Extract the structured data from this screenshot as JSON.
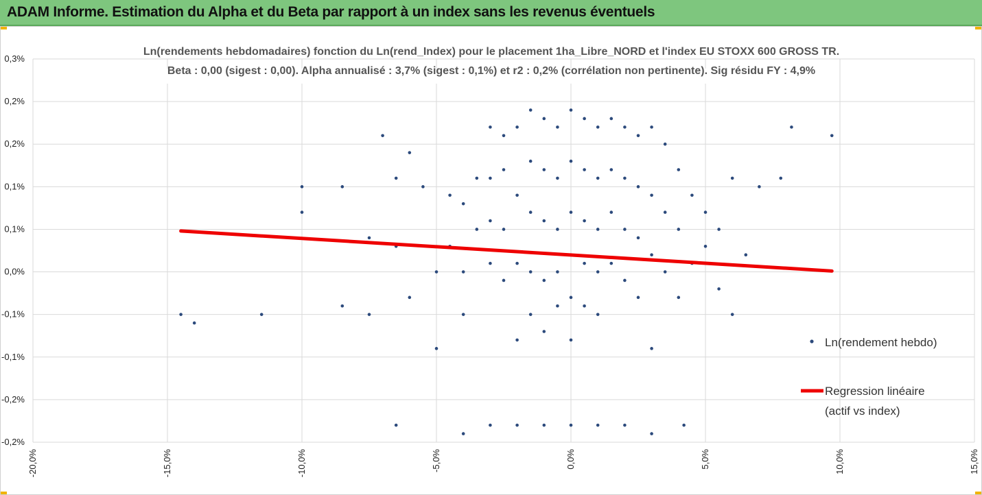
{
  "header": {
    "title": "ADAM Informe. Estimation du Alpha et du Beta par rapport à un index sans les revenus éventuels"
  },
  "chart_data": {
    "type": "scatter",
    "title_line1": "Ln(rendements hebdomadaires) fonction du Ln(rend_Index) pour le placement 1ha_Libre_NORD et l'index EU STOXX 600 GROSS TR.",
    "title_line2": "Beta : 0,00 (sigest : 0,00). Alpha annualisé : 3,7% (sigest : 0,1%) et r2 : 0,2% (corrélation non pertinente). Sig résidu FY : 4,9%",
    "xlim": [
      -0.2,
      0.15
    ],
    "ylim": [
      -0.0015,
      0.003
    ],
    "x_ticks": [
      "-20,0%",
      "-15,0%",
      "-10,0%",
      "-5,0%",
      "0,0%",
      "5,0%",
      "10,0%",
      "15,0%"
    ],
    "y_ticks": [
      "0,3%",
      "0,2%",
      "0,2%",
      "0,1%",
      "0,1%",
      "0,0%",
      "-0,1%",
      "-0,1%",
      "-0,2%",
      "-0,2%"
    ],
    "grid": true,
    "legend_position": "right",
    "series": [
      {
        "name": "Ln(rendement hebdo)",
        "kind": "scatter",
        "color": "#2c4a7c",
        "points": [
          [
            -0.145,
            0.0
          ],
          [
            -0.14,
            -0.0001
          ],
          [
            -0.115,
            0.0
          ],
          [
            -0.1,
            0.0015
          ],
          [
            -0.1,
            0.0012
          ],
          [
            -0.085,
            0.0015
          ],
          [
            -0.085,
            0.0001
          ],
          [
            -0.075,
            0.0009
          ],
          [
            -0.075,
            0.0
          ],
          [
            -0.07,
            0.0021
          ],
          [
            -0.065,
            0.0016
          ],
          [
            -0.065,
            0.0008
          ],
          [
            -0.06,
            0.0002
          ],
          [
            -0.06,
            0.0019
          ],
          [
            -0.055,
            0.0015
          ],
          [
            -0.05,
            0.0005
          ],
          [
            -0.05,
            -0.0004
          ],
          [
            -0.045,
            0.0008
          ],
          [
            -0.045,
            0.0014
          ],
          [
            -0.04,
            0.0013
          ],
          [
            -0.04,
            0.0
          ],
          [
            -0.04,
            0.0005
          ],
          [
            -0.035,
            0.0016
          ],
          [
            -0.035,
            0.001
          ],
          [
            -0.03,
            0.0022
          ],
          [
            -0.03,
            0.0016
          ],
          [
            -0.03,
            0.0011
          ],
          [
            -0.03,
            0.0006
          ],
          [
            -0.025,
            0.0021
          ],
          [
            -0.025,
            0.0017
          ],
          [
            -0.025,
            0.001
          ],
          [
            -0.025,
            0.0004
          ],
          [
            -0.02,
            0.0022
          ],
          [
            -0.02,
            0.0014
          ],
          [
            -0.02,
            0.0006
          ],
          [
            -0.02,
            -0.0003
          ],
          [
            -0.015,
            0.0024
          ],
          [
            -0.015,
            0.0018
          ],
          [
            -0.015,
            0.0012
          ],
          [
            -0.015,
            0.0005
          ],
          [
            -0.015,
            0.0
          ],
          [
            -0.01,
            0.0023
          ],
          [
            -0.01,
            0.0017
          ],
          [
            -0.01,
            0.0011
          ],
          [
            -0.01,
            0.0004
          ],
          [
            -0.01,
            -0.0002
          ],
          [
            -0.005,
            0.0022
          ],
          [
            -0.005,
            0.0016
          ],
          [
            -0.005,
            0.001
          ],
          [
            -0.005,
            0.0005
          ],
          [
            -0.005,
            0.0001
          ],
          [
            0.0,
            0.0024
          ],
          [
            0.0,
            0.0018
          ],
          [
            0.0,
            0.0012
          ],
          [
            0.0,
            0.0007
          ],
          [
            0.0,
            0.0002
          ],
          [
            0.0,
            -0.0003
          ],
          [
            0.005,
            0.0023
          ],
          [
            0.005,
            0.0017
          ],
          [
            0.005,
            0.0011
          ],
          [
            0.005,
            0.0006
          ],
          [
            0.005,
            0.0001
          ],
          [
            0.01,
            0.0022
          ],
          [
            0.01,
            0.0016
          ],
          [
            0.01,
            0.001
          ],
          [
            0.01,
            0.0005
          ],
          [
            0.01,
            0.0
          ],
          [
            0.015,
            0.0023
          ],
          [
            0.015,
            0.0017
          ],
          [
            0.015,
            0.0012
          ],
          [
            0.015,
            0.0006
          ],
          [
            0.02,
            0.0022
          ],
          [
            0.02,
            0.0016
          ],
          [
            0.02,
            0.001
          ],
          [
            0.02,
            0.0004
          ],
          [
            0.025,
            0.0021
          ],
          [
            0.025,
            0.0015
          ],
          [
            0.025,
            0.0009
          ],
          [
            0.025,
            0.0002
          ],
          [
            0.03,
            0.0022
          ],
          [
            0.03,
            0.0014
          ],
          [
            0.03,
            0.0007
          ],
          [
            0.03,
            -0.0004
          ],
          [
            0.035,
            0.002
          ],
          [
            0.035,
            0.0012
          ],
          [
            0.035,
            0.0005
          ],
          [
            0.04,
            0.0017
          ],
          [
            0.04,
            0.001
          ],
          [
            0.04,
            0.0002
          ],
          [
            0.045,
            0.0014
          ],
          [
            0.045,
            0.0006
          ],
          [
            0.05,
            0.0012
          ],
          [
            0.05,
            0.0008
          ],
          [
            0.055,
            0.001
          ],
          [
            0.055,
            0.0003
          ],
          [
            0.06,
            0.0016
          ],
          [
            0.06,
            0.0
          ],
          [
            0.065,
            0.0007
          ],
          [
            0.07,
            0.0015
          ],
          [
            0.078,
            0.0016
          ],
          [
            0.082,
            0.0022
          ],
          [
            0.097,
            0.0021
          ],
          [
            -0.065,
            -0.0013
          ],
          [
            -0.04,
            -0.0014
          ],
          [
            -0.03,
            -0.0013
          ],
          [
            -0.02,
            -0.0013
          ],
          [
            -0.01,
            -0.0013
          ],
          [
            0.0,
            -0.0013
          ],
          [
            0.01,
            -0.0013
          ],
          [
            0.02,
            -0.0013
          ],
          [
            0.03,
            -0.0014
          ],
          [
            0.042,
            -0.0013
          ]
        ]
      },
      {
        "name": "Regression linéaire (actif vs index)",
        "kind": "line",
        "color": "#ee0000",
        "x": [
          -0.145,
          0.097
        ],
        "y": [
          0.00098,
          0.00051
        ]
      }
    ],
    "legend": {
      "scatter_label": "Ln(rendement hebdo)",
      "line_label_1": "Regression linéaire",
      "line_label_2": "(actif vs index)"
    }
  }
}
